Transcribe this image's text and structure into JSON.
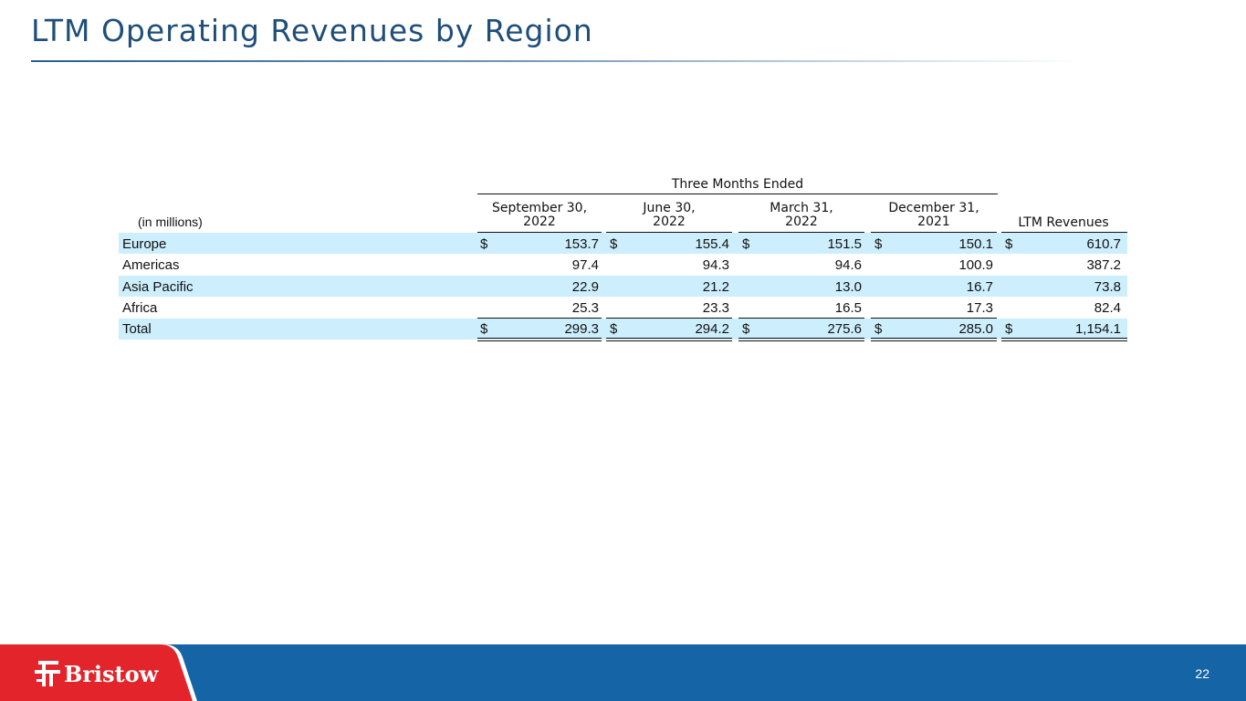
{
  "slide": {
    "title": "LTM Operating Revenues by Region",
    "page_number": "22",
    "logo_text": "Bristow"
  },
  "table": {
    "group_header": "Three Months Ended",
    "unit_label": "(in millions)",
    "columns": [
      {
        "line1": "September 30,",
        "line2": "2022"
      },
      {
        "line1": "June 30,",
        "line2": "2022"
      },
      {
        "line1": "March 31,",
        "line2": "2022"
      },
      {
        "line1": "December 31,",
        "line2": "2021"
      },
      {
        "line1": "LTM Revenues",
        "line2": ""
      }
    ],
    "currency": "$",
    "rows": [
      {
        "label": "Europe",
        "values": [
          "153.7",
          "155.4",
          "151.5",
          "150.1",
          "610.7"
        ]
      },
      {
        "label": "Americas",
        "values": [
          "97.4",
          "94.3",
          "94.6",
          "100.9",
          "387.2"
        ]
      },
      {
        "label": "Asia Pacific",
        "values": [
          "22.9",
          "21.2",
          "13.0",
          "16.7",
          "73.8"
        ]
      },
      {
        "label": "Africa",
        "values": [
          "25.3",
          "23.3",
          "16.5",
          "17.3",
          "82.4"
        ]
      },
      {
        "label": "Total",
        "values": [
          "299.3",
          "294.2",
          "275.6",
          "285.0",
          "1,154.1"
        ]
      }
    ]
  },
  "colors": {
    "title": "#1f4e79",
    "band": "#cdeefc",
    "footer_blue": "#1565a6",
    "footer_red": "#e3242b"
  }
}
